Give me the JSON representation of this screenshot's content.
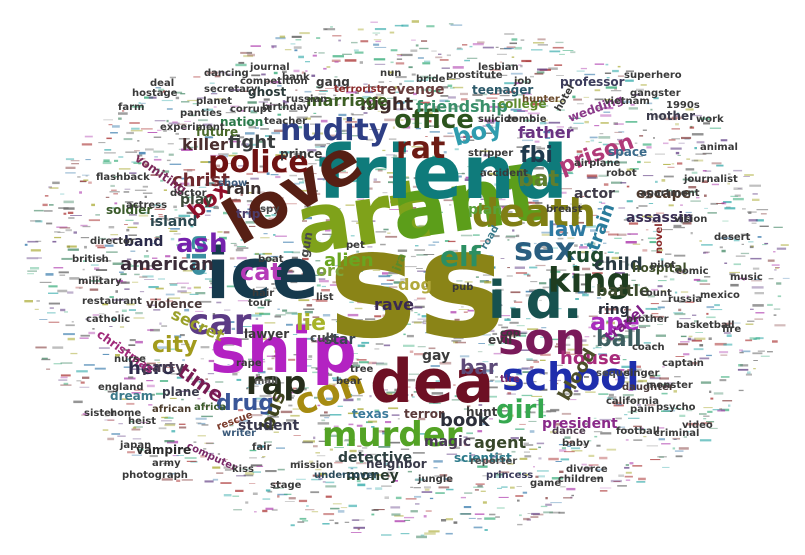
{
  "words": [
    {
      "text": "ss",
      "color": "#8a8417"
    },
    {
      "text": "art",
      "color": "#7fa21a"
    },
    {
      "text": "ant",
      "color": "#5c9e1a"
    },
    {
      "text": "friend",
      "color": "#0f7b7b"
    },
    {
      "text": "ice",
      "color": "#163a4d"
    },
    {
      "text": "love",
      "color": "#561f14"
    },
    {
      "text": "ship",
      "color": "#b322c2"
    },
    {
      "text": "dea",
      "color": "#6d1024"
    },
    {
      "text": "i.d.",
      "color": "#17524f"
    },
    {
      "text": "son",
      "color": "#7a1a5a"
    },
    {
      "text": "school",
      "color": "#1f2eac"
    },
    {
      "text": "king",
      "color": "#1e3d20"
    },
    {
      "text": "murder",
      "color": "#53a325"
    },
    {
      "text": "death",
      "color": "#7f7e14"
    },
    {
      "text": "sex",
      "color": "#2a5e80"
    },
    {
      "text": "con",
      "color": "#a68b11"
    },
    {
      "text": "car",
      "color": "#5c3b85"
    },
    {
      "text": "police",
      "color": "#6e1212"
    },
    {
      "text": "nudity",
      "color": "#2e3e85"
    },
    {
      "text": "rap",
      "color": "#262e1b"
    },
    {
      "text": "rat",
      "color": "#6d1b14"
    },
    {
      "text": "office",
      "color": "#2c541d"
    },
    {
      "text": "elf",
      "color": "#2c8f63"
    },
    {
      "text": "boy",
      "color": "#2f9cae"
    },
    {
      "text": "cia",
      "color": "#3b8fa0"
    },
    {
      "text": "ash",
      "color": "#7622ad"
    },
    {
      "text": "cat",
      "color": "#b53ab8"
    },
    {
      "text": "box",
      "color": "#8f0f2a"
    },
    {
      "text": "ape",
      "color": "#a82cbc"
    },
    {
      "text": "girl",
      "color": "#36a84f"
    },
    {
      "text": "city",
      "color": "#a29b1d"
    },
    {
      "text": "lie",
      "color": "#a7b329"
    },
    {
      "text": "bar",
      "color": "#5d4a78"
    },
    {
      "text": "ball",
      "color": "#3e5f61"
    },
    {
      "text": "drug",
      "color": "#3a5698"
    },
    {
      "text": "time",
      "color": "#781a52"
    },
    {
      "text": "bus",
      "color": "#3f441e"
    },
    {
      "text": "fbi",
      "color": "#203a4d"
    },
    {
      "text": "bat",
      "color": "#5f7e2e"
    },
    {
      "text": "law",
      "color": "#2e7aa2"
    },
    {
      "text": "rug",
      "color": "#1e4a2e"
    },
    {
      "text": "prison",
      "color": "#b13a78"
    },
    {
      "text": "house",
      "color": "#a72a7a"
    },
    {
      "text": "blood",
      "color": "#4d4f2a"
    },
    {
      "text": "book",
      "color": "#2c2f3a"
    },
    {
      "text": "agent",
      "color": "#38472a"
    },
    {
      "text": "child",
      "color": "#2a3b42"
    },
    {
      "text": "hero",
      "color": "#2c2b4a"
    },
    {
      "text": "american",
      "color": "#3b2c38"
    },
    {
      "text": "alien",
      "color": "#6aa520"
    },
    {
      "text": "christ",
      "color": "#6e2a2e"
    },
    {
      "text": "fight",
      "color": "#3a3e3f"
    },
    {
      "text": "killer",
      "color": "#4a2e2e"
    },
    {
      "text": "night",
      "color": "#3f2b2b"
    },
    {
      "text": "friendship",
      "color": "#3a8f6a"
    },
    {
      "text": "revenge",
      "color": "#6a3e3e"
    },
    {
      "text": "marriage",
      "color": "#3c5e24"
    },
    {
      "text": "father",
      "color": "#6a3282"
    },
    {
      "text": "train",
      "color": "#297c9b"
    },
    {
      "text": "battle",
      "color": "#3c4b2d"
    },
    {
      "text": "ring",
      "color": "#2a2e3a"
    },
    {
      "text": "travel",
      "color": "#7f1e86"
    },
    {
      "text": "secret",
      "color": "#9aa02a"
    },
    {
      "text": "dog",
      "color": "#b1a83b"
    },
    {
      "text": "orc",
      "color": "#7da53a"
    },
    {
      "text": "rave",
      "color": "#3a2a52"
    },
    {
      "text": "band",
      "color": "#2a2a4a"
    },
    {
      "text": "rain",
      "color": "#3b3030"
    },
    {
      "text": "play",
      "color": "#3d4a3a"
    },
    {
      "text": "party",
      "color": "#4a3e52"
    },
    {
      "text": "student",
      "color": "#38384d"
    },
    {
      "text": "detective",
      "color": "#2e4040"
    },
    {
      "text": "money",
      "color": "#2a3b2e"
    },
    {
      "text": "magic",
      "color": "#4b3a56"
    },
    {
      "text": "plan",
      "color": "#5aa03a"
    },
    {
      "text": "escape",
      "color": "#4e3a2f"
    },
    {
      "text": "assassin",
      "color": "#3a2e54"
    },
    {
      "text": "actor",
      "color": "#403c4a"
    },
    {
      "text": "hospital",
      "color": "#3e4e2a"
    },
    {
      "text": "island",
      "color": "#2c4850"
    },
    {
      "text": "soldier",
      "color": "#3a5a2a"
    },
    {
      "text": "dream",
      "color": "#3b7a8a"
    },
    {
      "text": "star",
      "color": "#3a4652"
    },
    {
      "text": "gay",
      "color": "#3c3c3c"
    },
    {
      "text": "cult",
      "color": "#4a4a4a"
    },
    {
      "text": "nation",
      "color": "#2c7a4a"
    },
    {
      "text": "trip",
      "color": "#4c3c6a"
    },
    {
      "text": "gang",
      "color": "#3a3a3a"
    },
    {
      "text": "mother",
      "color": "#3c3c4c"
    },
    {
      "text": "wedding",
      "color": "#8a3a8a"
    },
    {
      "text": "space",
      "color": "#3a6a8a"
    },
    {
      "text": "college",
      "color": "#5c8a2c"
    },
    {
      "text": "teenager",
      "color": "#2c5a6a"
    },
    {
      "text": "professor",
      "color": "#3c3c5c"
    },
    {
      "text": "hunter",
      "color": "#6a4a2a"
    },
    {
      "text": "terrorist",
      "color": "#8a2a2a"
    },
    {
      "text": "prince",
      "color": "#3a3a3a"
    },
    {
      "text": "future",
      "color": "#4a6a2a"
    },
    {
      "text": "ghost",
      "color": "#2a3a3a"
    },
    {
      "text": "vomiting",
      "color": "#7a2a5a"
    },
    {
      "text": "president",
      "color": "#8a2a8a"
    },
    {
      "text": "scientist",
      "color": "#2c7a8a"
    },
    {
      "text": "neighbor",
      "color": "#3a3a4a"
    },
    {
      "text": "undercover",
      "color": "#2a4a5a"
    },
    {
      "text": "terror",
      "color": "#5a3a3a"
    },
    {
      "text": "hunt",
      "color": "#3a3a3a"
    },
    {
      "text": "texas",
      "color": "#3a7a9a"
    },
    {
      "text": "california",
      "color": "#3a3a3a"
    },
    {
      "text": "princess",
      "color": "#3a3a5a"
    },
    {
      "text": "reporter",
      "color": "#4a4a4a"
    },
    {
      "text": "baby",
      "color": "#3a3a3a"
    },
    {
      "text": "dance",
      "color": "#4a3a4a"
    },
    {
      "text": "mall",
      "color": "#5a5a5a"
    },
    {
      "text": "writer",
      "color": "#3a5a7a"
    },
    {
      "text": "computer",
      "color": "#7a2a6a"
    },
    {
      "text": "vampire",
      "color": "#2a2a2a"
    },
    {
      "text": "army",
      "color": "#3a3a3a"
    },
    {
      "text": "african",
      "color": "#4a3a2a"
    },
    {
      "text": "africa",
      "color": "#3a5a2a"
    },
    {
      "text": "plane",
      "color": "#3a3a4a"
    },
    {
      "text": "sequel",
      "color": "#4a4a4a"
    },
    {
      "text": "cop",
      "color": "#3a3a3a"
    },
    {
      "text": "tire",
      "color": "#7a2a6a"
    },
    {
      "text": "evil",
      "color": "#3a3a3a"
    },
    {
      "text": "singer",
      "color": "#3a3a3a"
    },
    {
      "text": "daughter",
      "color": "#4a3a3a"
    },
    {
      "text": "monster",
      "color": "#3a3a3a"
    },
    {
      "text": "christmas",
      "color": "#a02a7a"
    },
    {
      "text": "violence",
      "color": "#4a3a3a"
    },
    {
      "text": "lawyer",
      "color": "#3a3a3a"
    },
    {
      "text": "gun",
      "color": "#4a4a4a"
    },
    {
      "text": "tour",
      "color": "#3a3a3a"
    },
    {
      "text": "hair",
      "color": "#3a3a3a"
    },
    {
      "text": "spy",
      "color": "#4a4a4a"
    },
    {
      "text": "show",
      "color": "#3a5a7a"
    },
    {
      "text": "doctor",
      "color": "#3a3a3a"
    },
    {
      "text": "pub",
      "color": "#3a3a3a"
    },
    {
      "text": "ira",
      "color": "#5a8a2a"
    },
    {
      "text": "robot",
      "color": "#3a3a3a"
    },
    {
      "text": "novel",
      "color": "#8a2a2a"
    },
    {
      "text": "hotel",
      "color": "#3a3a3a"
    },
    {
      "text": "pet",
      "color": "#3a3a3a"
    },
    {
      "text": "list",
      "color": "#3a3a3a"
    },
    {
      "text": "road",
      "color": "#3a7a8a"
    },
    {
      "text": "fair",
      "color": "#3a3a3a"
    },
    {
      "text": "rape",
      "color": "#3a3a3a"
    },
    {
      "text": "rescue",
      "color": "#7a3a2a"
    },
    {
      "text": "heist",
      "color": "#3a3a3a"
    },
    {
      "text": "russian",
      "color": "#3a3a3a"
    },
    {
      "text": "zombie",
      "color": "#3a3a3a"
    },
    {
      "text": "bank",
      "color": "#3a3a3a"
    },
    {
      "text": "teacher",
      "color": "#3a3a3a"
    },
    {
      "text": "brother",
      "color": "#3a3a3a"
    },
    {
      "text": "pain",
      "color": "#3a3a3a"
    },
    {
      "text": "stage",
      "color": "#3a3a3a"
    },
    {
      "text": "photograph",
      "color": "#3a3a3a"
    },
    {
      "text": "japan",
      "color": "#3a3a3a"
    },
    {
      "text": "jungle",
      "color": "#3a3a3a"
    },
    {
      "text": "mission",
      "color": "#3a3a3a"
    },
    {
      "text": "football",
      "color": "#3a3a3a"
    },
    {
      "text": "journalist",
      "color": "#3a3a3a"
    },
    {
      "text": "kiss",
      "color": "#3a3a3a"
    },
    {
      "text": "psycho",
      "color": "#3a3a3a"
    },
    {
      "text": "coach",
      "color": "#3a3a3a"
    },
    {
      "text": "comic",
      "color": "#3a3a3a"
    },
    {
      "text": "divorce",
      "color": "#3a3a3a"
    },
    {
      "text": "criminal",
      "color": "#3a3a3a"
    },
    {
      "text": "captain",
      "color": "#3a3a3a"
    },
    {
      "text": "farm",
      "color": "#3a3a3a"
    },
    {
      "text": "planet",
      "color": "#3a3a3a"
    },
    {
      "text": "birthday",
      "color": "#3a3a3a"
    },
    {
      "text": "suicide",
      "color": "#3a3a3a"
    },
    {
      "text": "job",
      "color": "#3a3a3a"
    },
    {
      "text": "superhero",
      "color": "#3a3a3a"
    },
    {
      "text": "apartment",
      "color": "#3a3a3a"
    },
    {
      "text": "vision",
      "color": "#3a3a3a"
    },
    {
      "text": "mexico",
      "color": "#3a3a3a"
    },
    {
      "text": "basketball",
      "color": "#3a3a3a"
    },
    {
      "text": "video",
      "color": "#3a3a3a"
    },
    {
      "text": "england",
      "color": "#3a3a3a"
    },
    {
      "text": "nurse",
      "color": "#3a3a3a"
    },
    {
      "text": "home",
      "color": "#3a3a3a"
    },
    {
      "text": "children",
      "color": "#3a3a3a"
    },
    {
      "text": "game",
      "color": "#3a3a3a"
    },
    {
      "text": "director",
      "color": "#3a3a3a"
    },
    {
      "text": "british",
      "color": "#3a3a3a"
    },
    {
      "text": "restaurant",
      "color": "#3a3a3a"
    },
    {
      "text": "military",
      "color": "#3a3a3a"
    },
    {
      "text": "catholic",
      "color": "#3a3a3a"
    },
    {
      "text": "desert",
      "color": "#3a3a3a"
    },
    {
      "text": "boat",
      "color": "#3a3a3a"
    },
    {
      "text": "bear",
      "color": "#3a3a3a"
    },
    {
      "text": "work",
      "color": "#3a3a3a"
    },
    {
      "text": "experiment",
      "color": "#3a3a3a"
    },
    {
      "text": "secretary",
      "color": "#3a3a3a"
    },
    {
      "text": "music",
      "color": "#3a3a3a"
    },
    {
      "text": "breast",
      "color": "#3a3a3a"
    },
    {
      "text": "lesbian",
      "color": "#3a3a3a"
    },
    {
      "text": "deal",
      "color": "#3a3a3a"
    },
    {
      "text": "nun",
      "color": "#3a3a3a"
    },
    {
      "text": "dancing",
      "color": "#3a3a3a"
    },
    {
      "text": "journal",
      "color": "#3a3a3a"
    },
    {
      "text": "hostage",
      "color": "#3a3a3a"
    },
    {
      "text": "panties",
      "color": "#3a3a3a"
    },
    {
      "text": "flashback",
      "color": "#3a3a3a"
    },
    {
      "text": "bride",
      "color": "#3a3a3a"
    },
    {
      "text": "prostitute",
      "color": "#3a3a3a"
    },
    {
      "text": "competition",
      "color": "#3a3a3a"
    },
    {
      "text": "corrupt",
      "color": "#3a3a3a"
    },
    {
      "text": "actress",
      "color": "#3a3a3a"
    },
    {
      "text": "vietnam",
      "color": "#3a3a3a"
    },
    {
      "text": "stripper",
      "color": "#3a3a3a"
    },
    {
      "text": "accident",
      "color": "#3a3a3a"
    },
    {
      "text": "airplane",
      "color": "#3a3a3a"
    },
    {
      "text": "sister",
      "color": "#3a3a3a"
    },
    {
      "text": "tree",
      "color": "#3a3a3a"
    },
    {
      "text": "count",
      "color": "#3a3a3a"
    },
    {
      "text": "pilot",
      "color": "#3a3a3a"
    },
    {
      "text": "russia",
      "color": "#3a3a3a"
    },
    {
      "text": "1990s",
      "color": "#3a3a3a"
    },
    {
      "text": "gangster",
      "color": "#3a3a3a"
    },
    {
      "text": "animal",
      "color": "#3a3a3a"
    },
    {
      "text": "fire",
      "color": "#3a3a3a"
    },
    {
      "text": "rock",
      "color": "#3a3a3a"
    },
    {
      "text": "meta",
      "color": "#3a3a3a"
    },
    {
      "text": "beach",
      "color": "#3a3a3a"
    },
    {
      "text": "india",
      "color": "#3a3a3a"
    }
  ]
}
